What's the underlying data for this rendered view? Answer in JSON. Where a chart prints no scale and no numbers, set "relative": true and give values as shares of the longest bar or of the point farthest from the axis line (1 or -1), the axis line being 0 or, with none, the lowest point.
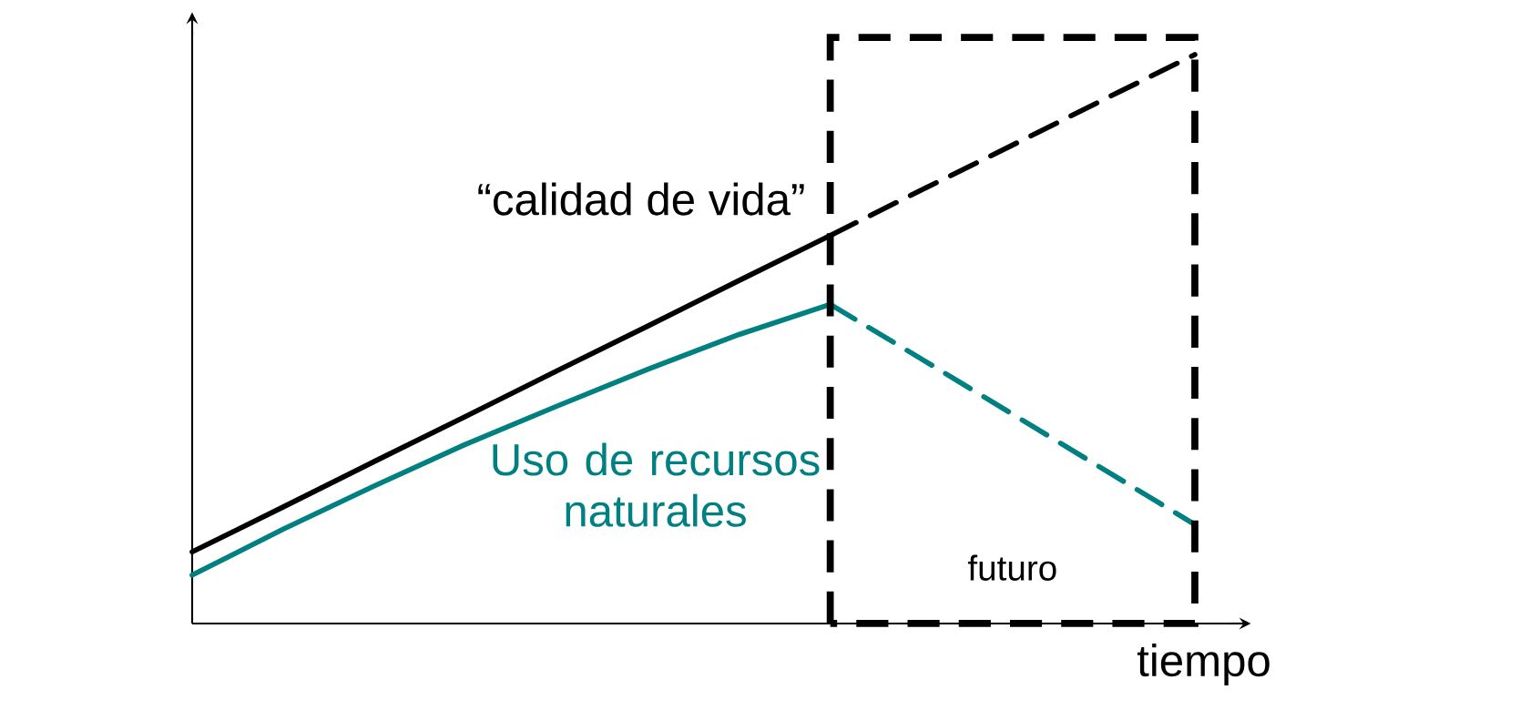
{
  "chart_data": {
    "type": "line",
    "relative": true,
    "xlabel": "tiempo",
    "categories": [
      null,
      null,
      null,
      null,
      null,
      null,
      null,
      null,
      null,
      null,
      null,
      null
    ],
    "series": [
      {
        "name": "“calidad de vida”",
        "color": "#000000",
        "line_style": "solid",
        "values": [
          0.126,
          0.205,
          0.285,
          0.364,
          0.444,
          0.523,
          0.603,
          0.682,
          null,
          null,
          null,
          null
        ]
      },
      {
        "color": "#000000",
        "line_style": "dashed",
        "values": [
          null,
          null,
          null,
          null,
          null,
          null,
          null,
          0.682,
          0.762,
          0.841,
          0.921,
          1.0
        ]
      },
      {
        "name": "Uso de recursos naturales",
        "color": "#008080",
        "line_style": "solid",
        "values": [
          0.085,
          0.166,
          0.242,
          0.315,
          0.382,
          0.447,
          0.508,
          0.561,
          null,
          null,
          null,
          null
        ]
      },
      {
        "color": "#008080",
        "line_style": "dashed",
        "values": [
          null,
          null,
          null,
          null,
          null,
          null,
          null,
          0.561,
          0.465,
          0.368,
          0.271,
          0.174
        ]
      }
    ],
    "annotations": [
      "futuro"
    ]
  }
}
